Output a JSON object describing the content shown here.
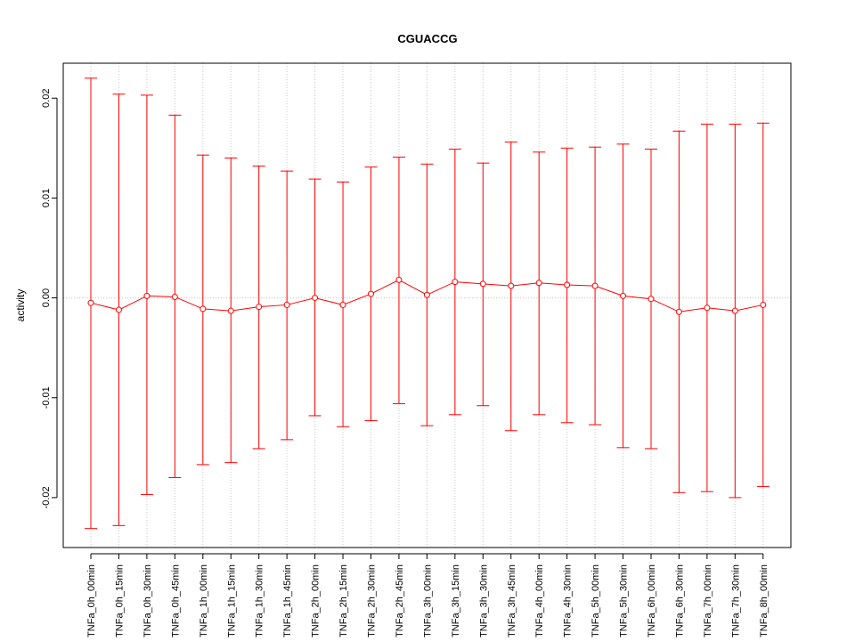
{
  "chart_data": {
    "type": "line",
    "title": "CGUACCG",
    "xlabel": "",
    "ylabel": "activity",
    "ylim": [
      -0.025,
      0.0235
    ],
    "yticks": [
      -0.02,
      -0.01,
      0.0,
      0.01,
      0.02
    ],
    "ytick_labels": [
      "-0.02",
      "-0.01",
      "0.00",
      "0.01",
      "0.02"
    ],
    "grid": true,
    "legend": "none",
    "colors": {
      "series": "#ff0000",
      "grid": "#c8c8c8",
      "axis": "#000000"
    },
    "categories": [
      "TNFa_0h_00min",
      "TNFa_0h_15min",
      "TNFa_0h_30min",
      "TNFa_0h_45min",
      "TNFa_1h_00min",
      "TNFa_1h_15min",
      "TNFa_1h_30min",
      "TNFa_1h_45min",
      "TNFa_2h_00min",
      "TNFa_2h_15min",
      "TNFa_2h_30min",
      "TNFa_2h_45min",
      "TNFa_3h_00min",
      "TNFa_3h_15min",
      "TNFa_3h_30min",
      "TNFa_3h_45min",
      "TNFa_4h_00min",
      "TNFa_4h_30min",
      "TNFa_5h_00min",
      "TNFa_5h_30min",
      "TNFa_6h_00min",
      "TNFa_6h_30min",
      "TNFa_7h_00min",
      "TNFa_7h_30min",
      "TNFa_8h_00min"
    ],
    "series": [
      {
        "values": [
          -0.0005,
          -0.0012,
          0.0002,
          0.0001,
          -0.0011,
          -0.0013,
          -0.0009,
          -0.0007,
          0.0,
          -0.0007,
          0.0004,
          0.0018,
          0.0003,
          0.0016,
          0.0014,
          0.0012,
          0.0015,
          0.0013,
          0.0012,
          0.0002,
          -0.0001,
          -0.0014,
          -0.001,
          -0.0013,
          -0.0007
        ],
        "upper": [
          0.022,
          0.0204,
          0.0203,
          0.0183,
          0.0143,
          0.014,
          0.0132,
          0.0127,
          0.0119,
          0.0116,
          0.0131,
          0.0141,
          0.0134,
          0.0149,
          0.0135,
          0.0156,
          0.0146,
          0.015,
          0.0151,
          0.0154,
          0.0149,
          0.0167,
          0.0174,
          0.0174,
          0.0175
        ],
        "lower": [
          -0.0231,
          -0.0228,
          -0.0197,
          -0.018,
          -0.0167,
          -0.0165,
          -0.0151,
          -0.0142,
          -0.0118,
          -0.0129,
          -0.0123,
          -0.0106,
          -0.0128,
          -0.0117,
          -0.0108,
          -0.0133,
          -0.0117,
          -0.0125,
          -0.0127,
          -0.015,
          -0.0151,
          -0.0195,
          -0.0194,
          -0.02,
          -0.0189
        ]
      }
    ]
  }
}
